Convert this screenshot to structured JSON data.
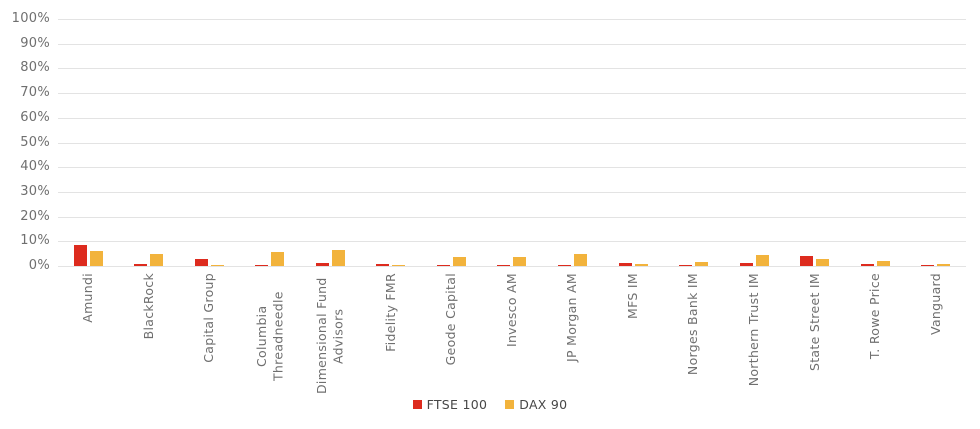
{
  "chart_data": {
    "type": "bar",
    "bar_orientation": "vertical",
    "title": "",
    "xlabel": "",
    "ylabel": "",
    "ylim": [
      0,
      100
    ],
    "grid": true,
    "legend_position": "bottom-center",
    "y_ticks": [
      "100%",
      "90%",
      "80%",
      "70%",
      "60%",
      "50%",
      "40%",
      "30%",
      "20%",
      "10%",
      "0%"
    ],
    "categories": [
      "Amundi",
      "BlackRock",
      "Capital Group",
      "Columbia Threadneedle",
      "Dimensional Fund Advisors",
      "Fidelity FMR",
      "Geode Capital",
      "Invesco AM",
      "JP Morgan AM",
      "MFS IM",
      "Norges Bank IM",
      "Northern Trust IM",
      "State Street IM",
      "T. Rowe Price",
      "Vanguard"
    ],
    "series": [
      {
        "name": "FTSE 100",
        "color": "#dd2b1e",
        "values": [
          8.5,
          1.0,
          3.0,
          0.3,
          1.3,
          0.8,
          0.4,
          0.4,
          0.3,
          1.1,
          0.5,
          1.4,
          4.0,
          0.8,
          0.2
        ]
      },
      {
        "name": "DAX 90",
        "color": "#f2b33c",
        "values": [
          6.0,
          5.0,
          0.2,
          5.5,
          6.5,
          0.5,
          3.5,
          3.7,
          5.0,
          0.8,
          1.8,
          4.6,
          3.0,
          2.0,
          1.0
        ]
      }
    ]
  },
  "colors": {
    "background": "#ffffff",
    "gridline": "#e3e3e3",
    "axis_text": "#6f6f6f",
    "legend_text": "#474747",
    "ftse_red": "#dd2b1e",
    "dax_orange": "#f2b33c"
  }
}
